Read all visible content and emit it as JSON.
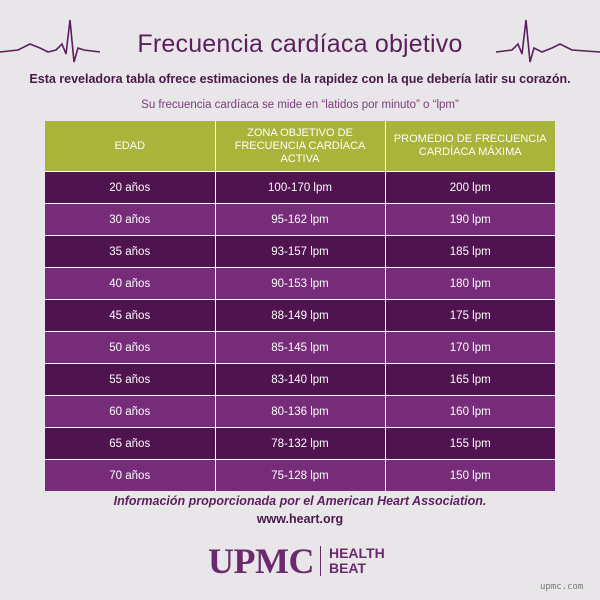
{
  "header": {
    "title": "Frecuencia cardíaca objetivo",
    "subtitle": "Esta reveladora tabla ofrece estimaciones de la rapidez con la que debería latir su corazón.",
    "note": "Su frecuencia cardíaca se mide en “latidos por minuto” o “lpm”",
    "accent_color": "#5c1f5e",
    "header_color": "#a8b43a"
  },
  "table": {
    "headers": [
      "EDAD",
      "ZONA OBJETIVO DE FRECUENCIA CARDÍACA ACTIVA",
      "PROMEDIO DE FRECUENCIA CARDÍACA MÁXIMA"
    ],
    "rows": [
      [
        "20 años",
        "100-170 lpm",
        "200 lpm"
      ],
      [
        "30 años",
        "95-162 lpm",
        "190 lpm"
      ],
      [
        "35 años",
        "93-157 lpm",
        "185 lpm"
      ],
      [
        "40 años",
        "90-153 lpm",
        "180 lpm"
      ],
      [
        "45 años",
        "88-149 lpm",
        "175 lpm"
      ],
      [
        "50 años",
        "85-145 lpm",
        "170 lpm"
      ],
      [
        "55 años",
        "83-140 lpm",
        "165 lpm"
      ],
      [
        "60 años",
        "80-136 lpm",
        "160 lpm"
      ],
      [
        "65 años",
        "78-132 lpm",
        "155 lpm"
      ],
      [
        "70 años",
        "75-128 lpm",
        "150 lpm"
      ]
    ]
  },
  "footer": {
    "source": "Información proporcionada por el American Heart Association.",
    "url": "www.heart.org",
    "logo_main": "UPMC",
    "logo_line1": "HEALTH",
    "logo_line2": "BEAT",
    "watermark": "upmc.com"
  },
  "icons": [
    "heartbeat-line-icon"
  ]
}
